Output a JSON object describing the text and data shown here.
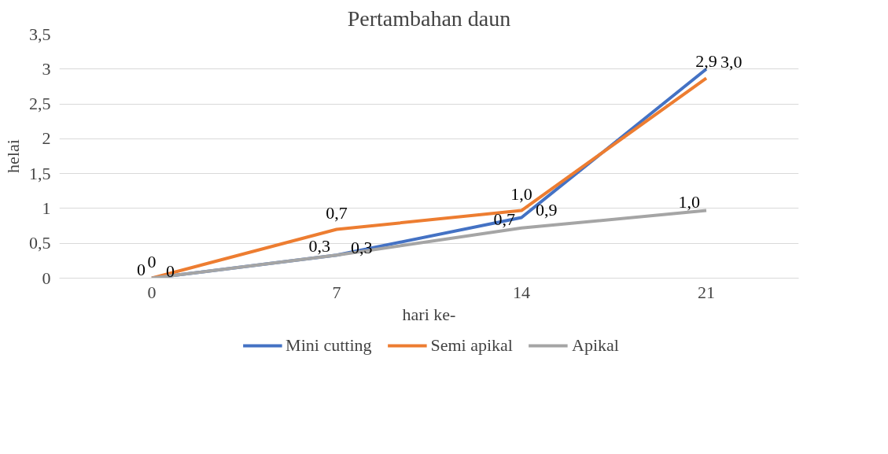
{
  "chart_data": {
    "type": "line",
    "title": "Pertambahan daun",
    "xlabel": "hari ke-",
    "ylabel": "helai",
    "categories": [
      "0",
      "7",
      "14",
      "21"
    ],
    "series": [
      {
        "name": "Mini cutting",
        "color": "#4472c4",
        "values": [
          0,
          0.33,
          0.87,
          3.0
        ],
        "value_labels": [
          "0",
          "0,3",
          "0,9",
          "3,0"
        ]
      },
      {
        "name": "Semi apikal",
        "color": "#ed7d31",
        "values": [
          0,
          0.7,
          0.97,
          2.87
        ],
        "value_labels": [
          "0",
          "0,7",
          "1,0",
          "2,9"
        ]
      },
      {
        "name": "Apikal",
        "color": "#a5a5a5",
        "values": [
          0,
          0.33,
          0.72,
          0.97
        ],
        "value_labels": [
          "0",
          "0,3",
          "0,7",
          "1,0"
        ]
      }
    ],
    "ylim": [
      0,
      3.5
    ],
    "yticks": [
      0,
      {
        "value": 0.5,
        "label": "0,5"
      },
      1,
      {
        "value": 1.5,
        "label": "1,5"
      },
      2,
      {
        "value": 2.5,
        "label": "2,5"
      },
      3,
      {
        "value": 3.5,
        "label": "3,5"
      }
    ],
    "grid": "y",
    "legend": "bottom",
    "marker": "none",
    "line_style": "solid"
  }
}
